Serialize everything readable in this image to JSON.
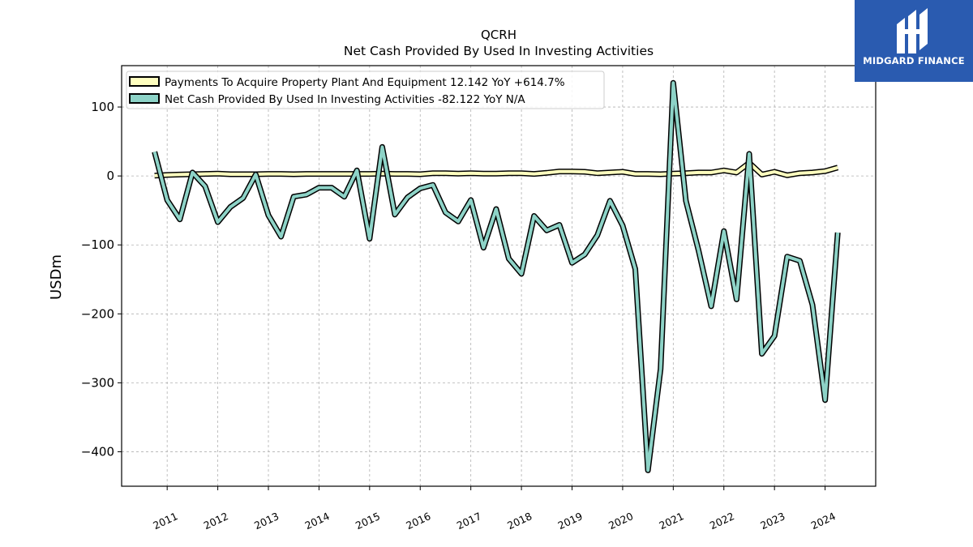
{
  "brand": {
    "name": "MIDGARD FINANCE",
    "color": "#2a5bb0"
  },
  "chart_data": {
    "type": "line",
    "title": "QCRH",
    "subtitle": "Net Cash Provided By Used In Investing Activities",
    "ylabel": "USDm",
    "xlabel": "",
    "ylim": [
      -450,
      160
    ],
    "xlim": [
      2010.1,
      2025.0
    ],
    "yticks": [
      100,
      0,
      -100,
      -200,
      -300,
      -400
    ],
    "ytick_labels": [
      "100",
      "0",
      "−100",
      "−200",
      "−300",
      "−400"
    ],
    "xticks": [
      2011,
      2012,
      2013,
      2014,
      2015,
      2016,
      2017,
      2018,
      2019,
      2020,
      2021,
      2022,
      2023,
      2024
    ],
    "xtick_labels": [
      "2011",
      "2012",
      "2013",
      "2014",
      "2015",
      "2016",
      "2017",
      "2018",
      "2019",
      "2020",
      "2021",
      "2022",
      "2023",
      "2024"
    ],
    "grid": true,
    "legend_position": "top-left",
    "series": [
      {
        "name": "Payments To Acquire Property Plant And Equipment  12.142 YoY +614.7%",
        "color": "#ffffbf",
        "x": [
          2010.75,
          2011.0,
          2011.25,
          2011.5,
          2011.75,
          2012.0,
          2012.25,
          2012.5,
          2012.75,
          2013.0,
          2013.25,
          2013.5,
          2013.75,
          2014.0,
          2014.25,
          2014.5,
          2014.75,
          2015.0,
          2015.25,
          2015.5,
          2015.75,
          2016.0,
          2016.25,
          2016.5,
          2016.75,
          2017.0,
          2017.25,
          2017.5,
          2017.75,
          2018.0,
          2018.25,
          2018.5,
          2018.75,
          2019.0,
          2019.25,
          2019.5,
          2019.75,
          2020.0,
          2020.25,
          2020.5,
          2020.75,
          2021.0,
          2021.25,
          2021.5,
          2021.75,
          2022.0,
          2022.25,
          2022.5,
          2022.75,
          2023.0,
          2023.25,
          2023.5,
          2023.75,
          2024.0,
          2024.25
        ],
        "values": [
          0.5,
          1.5,
          2,
          2.5,
          3,
          3.5,
          2.5,
          2.5,
          2.5,
          3,
          3,
          2.5,
          3,
          3,
          3,
          3,
          3,
          3,
          3.5,
          3,
          3,
          2.5,
          4,
          4,
          3.5,
          4,
          3.5,
          3.5,
          4,
          4,
          3,
          4.5,
          6.5,
          6.5,
          6,
          4,
          5,
          6,
          3,
          3,
          2.5,
          3.5,
          4,
          5,
          5,
          8,
          5,
          19,
          2,
          6,
          1,
          4,
          5,
          7,
          12.142
        ]
      },
      {
        "name": "Net Cash Provided By Used In Investing Activities  -82.122 YoY N/A",
        "color": "#8dd3c7",
        "x": [
          2010.75,
          2011.0,
          2011.25,
          2011.5,
          2011.75,
          2012.0,
          2012.25,
          2012.5,
          2012.75,
          2013.0,
          2013.25,
          2013.5,
          2013.75,
          2014.0,
          2014.25,
          2014.5,
          2014.75,
          2015.0,
          2015.25,
          2015.5,
          2015.75,
          2016.0,
          2016.25,
          2016.5,
          2016.75,
          2017.0,
          2017.25,
          2017.5,
          2017.75,
          2018.0,
          2018.25,
          2018.5,
          2018.75,
          2019.0,
          2019.25,
          2019.5,
          2019.75,
          2020.0,
          2020.25,
          2020.5,
          2020.75,
          2021.0,
          2021.25,
          2021.5,
          2021.75,
          2022.0,
          2022.25,
          2022.5,
          2022.75,
          2023.0,
          2023.25,
          2023.5,
          2023.75,
          2024.0,
          2024.25
        ],
        "values": [
          35,
          -35,
          -63,
          5,
          -15,
          -67,
          -45,
          -32,
          2,
          -57,
          -88,
          -30,
          -27,
          -17,
          -17,
          -30,
          8,
          -91,
          42,
          -56,
          -31,
          -18,
          -13,
          -53,
          -66,
          -35,
          -104,
          -48,
          -120,
          -142,
          -58,
          -79,
          -71,
          -126,
          -114,
          -86,
          -36,
          -72,
          -135,
          -427,
          -280,
          135,
          -36,
          -108,
          -189,
          -80,
          -179,
          32,
          -258,
          -232,
          -117,
          -123,
          -187,
          -325,
          -82.122
        ]
      }
    ]
  }
}
